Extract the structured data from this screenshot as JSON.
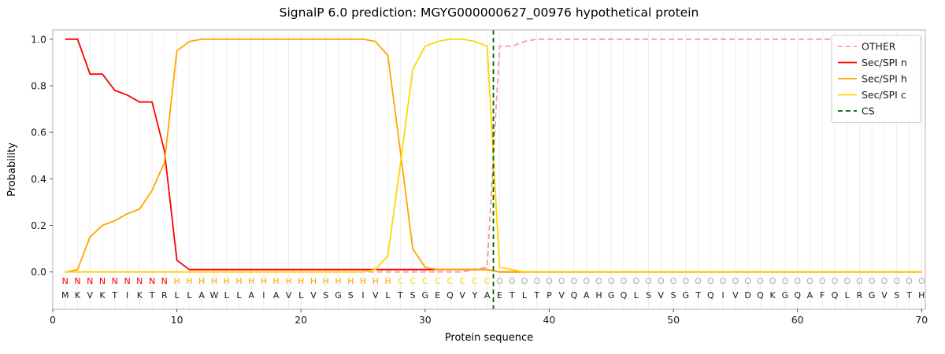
{
  "figure_title": "SignalP 6.0 prediction: MGYG000000627_00976 hypothetical protein",
  "chart_data": {
    "type": "line",
    "title": "SignalP 6.0 prediction: MGYG000000627_00976 hypothetical protein",
    "xlabel": "Protein sequence",
    "ylabel": "Probability",
    "xlim": [
      0,
      70.3
    ],
    "ylim": [
      -0.16,
      1.04
    ],
    "xticks": [
      0,
      10,
      20,
      30,
      40,
      50,
      60,
      70
    ],
    "yticks": [
      0.0,
      0.2,
      0.4,
      0.6,
      0.8,
      1.0
    ],
    "grid": "light vertical line at every residue position",
    "legend_position": "upper right",
    "legend": [
      "OTHER",
      "Sec/SPI n",
      "Sec/SPI h",
      "Sec/SPI c",
      "CS"
    ],
    "x": [
      1,
      2,
      3,
      4,
      5,
      6,
      7,
      8,
      9,
      10,
      11,
      12,
      13,
      14,
      15,
      16,
      17,
      18,
      19,
      20,
      21,
      22,
      23,
      24,
      25,
      26,
      27,
      28,
      29,
      30,
      31,
      32,
      33,
      34,
      35,
      36,
      37,
      38,
      39,
      40,
      41,
      42,
      43,
      44,
      45,
      46,
      47,
      48,
      49,
      50,
      51,
      52,
      53,
      54,
      55,
      56,
      57,
      58,
      59,
      60,
      61,
      62,
      63,
      64,
      65,
      66,
      67,
      68,
      69,
      70
    ],
    "series": [
      {
        "name": "OTHER",
        "color": "#ff9999",
        "dash": true,
        "values": [
          0,
          0,
          0,
          0,
          0,
          0,
          0,
          0,
          0,
          0,
          0,
          0,
          0,
          0,
          0,
          0,
          0,
          0,
          0,
          0,
          0,
          0,
          0,
          0,
          0,
          0,
          0,
          0,
          0,
          0,
          0,
          0,
          0,
          0.01,
          0.02,
          0.97,
          0.97,
          0.99,
          1.0,
          1.0,
          1.0,
          1.0,
          1.0,
          1.0,
          1.0,
          1.0,
          1.0,
          1.0,
          1.0,
          1.0,
          1.0,
          1.0,
          1.0,
          1.0,
          1.0,
          1.0,
          1.0,
          1.0,
          1.0,
          1.0,
          1.0,
          1.0,
          1.0,
          1.0,
          1.0,
          1.0,
          1.0,
          1.0,
          1.0,
          1.0
        ]
      },
      {
        "name": "Sec/SPI n",
        "color": "#ff0000",
        "dash": false,
        "values": [
          1.0,
          1.0,
          0.85,
          0.85,
          0.78,
          0.76,
          0.73,
          0.73,
          0.52,
          0.05,
          0.01,
          0.01,
          0.01,
          0.01,
          0.01,
          0.01,
          0.01,
          0.01,
          0.01,
          0.01,
          0.01,
          0.01,
          0.01,
          0.01,
          0.01,
          0.01,
          0.01,
          0.01,
          0.01,
          0.01,
          0.01,
          0.01,
          0.01,
          0.01,
          0.01,
          0,
          0,
          0,
          0,
          0,
          0,
          0,
          0,
          0,
          0,
          0,
          0,
          0,
          0,
          0,
          0,
          0,
          0,
          0,
          0,
          0,
          0,
          0,
          0,
          0,
          0,
          0,
          0,
          0,
          0,
          0,
          0,
          0,
          0,
          0
        ]
      },
      {
        "name": "Sec/SPI h",
        "color": "#ffa500",
        "dash": false,
        "values": [
          0,
          0.01,
          0.15,
          0.2,
          0.22,
          0.25,
          0.27,
          0.35,
          0.47,
          0.95,
          0.99,
          1.0,
          1.0,
          1.0,
          1.0,
          1.0,
          1.0,
          1.0,
          1.0,
          1.0,
          1.0,
          1.0,
          1.0,
          1.0,
          1.0,
          0.99,
          0.93,
          0.52,
          0.1,
          0.02,
          0.01,
          0.01,
          0.01,
          0.01,
          0.01,
          0,
          0,
          0,
          0,
          0,
          0,
          0,
          0,
          0,
          0,
          0,
          0,
          0,
          0,
          0,
          0,
          0,
          0,
          0,
          0,
          0,
          0,
          0,
          0,
          0,
          0,
          0,
          0,
          0,
          0,
          0,
          0,
          0,
          0,
          0
        ]
      },
      {
        "name": "Sec/SPI c",
        "color": "#ffd700",
        "dash": false,
        "values": [
          0,
          0,
          0,
          0,
          0,
          0,
          0,
          0,
          0,
          0,
          0,
          0,
          0,
          0,
          0,
          0,
          0,
          0,
          0,
          0,
          0,
          0,
          0,
          0,
          0,
          0.01,
          0.07,
          0.46,
          0.87,
          0.97,
          0.99,
          1.0,
          1.0,
          0.99,
          0.97,
          0.02,
          0.01,
          0,
          0,
          0,
          0,
          0,
          0,
          0,
          0,
          0,
          0,
          0,
          0,
          0,
          0,
          0,
          0,
          0,
          0,
          0,
          0,
          0,
          0,
          0,
          0,
          0,
          0,
          0,
          0,
          0,
          0,
          0,
          0,
          0
        ]
      }
    ],
    "cs_line": {
      "name": "CS",
      "position": 35.5,
      "color": "#006400",
      "dash": true
    },
    "sequence": "MKVKTIKTRLLAWLLAIAVLVSGSIVLTSGEQVYAETLTPVQAHGQLSVSGTQIVDQKGQAFQLRGVSTH",
    "regions": "NNNNNNNNNHHHHHHHHHHHHHHHHHHCCCCCCCCOOOOOOOOOOOOOOOOOOOOOOOOOOOOOOOOOOO",
    "region_colors": {
      "N": "#ff0000",
      "H": "#ffa500",
      "C": "#ffd700",
      "O": "#aaaaaa"
    },
    "sequence_color": "#1a1a1a"
  },
  "style": {
    "grid_color": "#ececec",
    "spine_color": "#b0b0b0",
    "tick_color": "#555555",
    "text_color": "#1a1a1a",
    "legend_border": "#cccccc",
    "background": "#ffffff"
  }
}
